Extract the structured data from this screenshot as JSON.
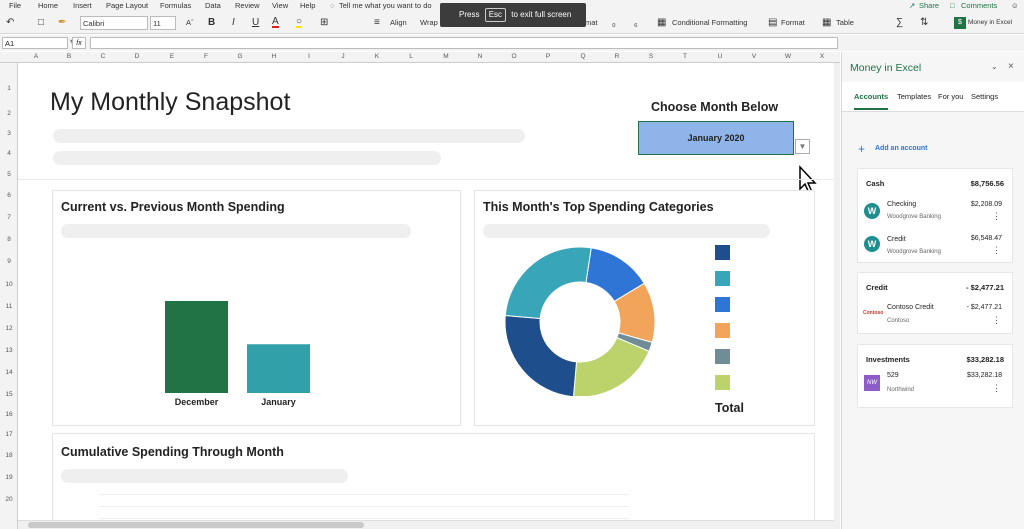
{
  "menu": [
    "File",
    "Home",
    "Insert",
    "Page Layout",
    "Formulas",
    "Data",
    "Review",
    "View",
    "Help",
    "Tell me what you want to do"
  ],
  "menu_right": {
    "share": "Share",
    "comments": "Comments"
  },
  "ribbon": {
    "font_name": "Calibri",
    "font_size": "11",
    "bold": "B",
    "italic": "I",
    "underline": "U",
    "font_color": "A",
    "align": "Align",
    "number_format": "Number Format",
    "cond_format": "Conditional Formatting",
    "format": "Format",
    "table": "Table",
    "money": "Money in Excel",
    "wrap": "Wrap"
  },
  "fullscreen": {
    "press": "Press",
    "key": "Esc",
    "rest": "to exit full screen"
  },
  "formula_bar": {
    "cell_ref": "A1",
    "fx": "fx"
  },
  "columns": [
    "A",
    "B",
    "C",
    "D",
    "E",
    "F",
    "G",
    "H",
    "I",
    "J",
    "K",
    "L",
    "M",
    "N",
    "O",
    "P",
    "Q",
    "R",
    "S",
    "T",
    "U",
    "V",
    "W",
    "X"
  ],
  "rows": [
    "1",
    "2",
    "3",
    "4",
    "5",
    "6",
    "7",
    "8",
    "9",
    "10",
    "11",
    "12",
    "13",
    "14",
    "15",
    "16",
    "17",
    "18",
    "19",
    "20"
  ],
  "sheet": {
    "title": "My Monthly Snapshot",
    "choose_label": "Choose Month Below",
    "month": "January 2020"
  },
  "card1": {
    "title": "Current vs. Previous Month Spending"
  },
  "card2": {
    "title": "This Month's Top Spending Categories",
    "total": "Total"
  },
  "card3": {
    "title": "Cumulative Spending Through Month"
  },
  "chart_data": [
    {
      "type": "bar",
      "categories": [
        "December",
        "January"
      ],
      "values": [
        100,
        53
      ],
      "title": "",
      "xlabel": "",
      "ylabel": "",
      "ylim": [
        0,
        100
      ],
      "colors": [
        "#217346",
        "#32a0a8"
      ]
    },
    {
      "type": "pie",
      "variant": "donut",
      "slices": [
        {
          "value": 14,
          "color": "#2e75d6"
        },
        {
          "value": 13,
          "color": "#f2a55a"
        },
        {
          "value": 2,
          "color": "#6f8c97"
        },
        {
          "value": 20,
          "color": "#bcd36c"
        },
        {
          "value": 25,
          "color": "#1f4e8c"
        },
        {
          "value": 26,
          "color": "#39a5b9"
        }
      ],
      "legend_colors": [
        "#1f4e8c",
        "#39a5b9",
        "#2e75d6",
        "#f2a55a",
        "#6f8c97",
        "#bcd36c"
      ],
      "legend_placement": "right"
    }
  ],
  "pane": {
    "title": "Money in Excel",
    "tabs": [
      "Accounts",
      "Templates",
      "For you",
      "Settings"
    ],
    "add_account": "Add an account",
    "groups": [
      {
        "name": "Cash",
        "total": "$8,756.56",
        "accounts": [
          {
            "name": "Checking",
            "sub": "Woodgrove Banking",
            "value": "$2,208.09",
            "logo": "W"
          },
          {
            "name": "Credit",
            "sub": "Woodgrove Banking",
            "value": "$6,548.47",
            "logo": "W"
          }
        ]
      },
      {
        "name": "Credit",
        "total": "-  $2,477.21",
        "accounts": [
          {
            "name": "Contoso Credit",
            "sub": "Contoso",
            "value": "-  $2,477.21",
            "logo": "Contoso"
          }
        ]
      },
      {
        "name": "Investments",
        "total": "$33,282.18",
        "accounts": [
          {
            "name": "529",
            "sub": "Northwind",
            "value": "$33,282.18",
            "logo": "NW"
          }
        ]
      }
    ]
  }
}
